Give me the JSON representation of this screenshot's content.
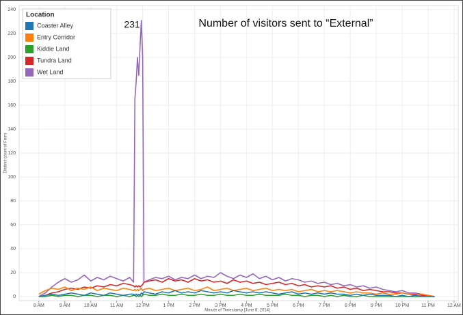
{
  "chart_data": {
    "type": "line",
    "title": "Number of visitors sent to “External”",
    "annotation": "231",
    "xlabel": "Minute of Timestamp [June 8, 2014]",
    "ylabel": "Distinct count of From",
    "legend_title": "Location",
    "legend": "top-left",
    "grid": true,
    "x": [
      8.0,
      8.25,
      8.5,
      8.75,
      9.0,
      9.25,
      9.5,
      9.75,
      10.0,
      10.25,
      10.5,
      10.75,
      11.0,
      11.25,
      11.5,
      11.65,
      11.7,
      11.75,
      11.8,
      11.85,
      11.9,
      11.95,
      12.0,
      12.05,
      12.25,
      12.5,
      12.75,
      13.0,
      13.25,
      13.5,
      13.75,
      14.0,
      14.25,
      14.5,
      14.75,
      15.0,
      15.25,
      15.5,
      15.75,
      16.0,
      16.25,
      16.5,
      16.75,
      17.0,
      17.25,
      17.5,
      17.75,
      18.0,
      18.25,
      18.5,
      18.75,
      19.0,
      19.25,
      19.5,
      19.75,
      20.0,
      20.25,
      20.5,
      20.75,
      21.0,
      21.25,
      21.5,
      21.75,
      22.0,
      22.25,
      22.5,
      22.75,
      23.0,
      23.25
    ],
    "xlim": [
      7.24,
      24.16
    ],
    "xticks": [
      {
        "value": 8,
        "label": "8 AM"
      },
      {
        "value": 9,
        "label": "9 AM"
      },
      {
        "value": 10,
        "label": "10 AM"
      },
      {
        "value": 11,
        "label": "11 AM"
      },
      {
        "value": 12,
        "label": "12 PM"
      },
      {
        "value": 13,
        "label": "1 PM"
      },
      {
        "value": 14,
        "label": "2 PM"
      },
      {
        "value": 15,
        "label": "3 PM"
      },
      {
        "value": 16,
        "label": "4 PM"
      },
      {
        "value": 17,
        "label": "5 PM"
      },
      {
        "value": 18,
        "label": "6 PM"
      },
      {
        "value": 19,
        "label": "7 PM"
      },
      {
        "value": 20,
        "label": "8 PM"
      },
      {
        "value": 21,
        "label": "9 PM"
      },
      {
        "value": 22,
        "label": "10 PM"
      },
      {
        "value": 23,
        "label": "11 PM"
      },
      {
        "value": 24,
        "label": "12 AM"
      }
    ],
    "ylim": [
      0,
      240
    ],
    "yticks": [
      0,
      20,
      40,
      60,
      80,
      100,
      120,
      140,
      160,
      180,
      200,
      220,
      240
    ],
    "series": [
      {
        "name": "Coaster Alley",
        "color": "#1f77b4",
        "values": [
          0,
          1,
          2,
          1,
          2,
          3,
          2,
          1,
          3,
          2,
          1,
          3,
          2,
          1,
          2,
          2,
          1,
          2,
          1,
          2,
          1,
          3,
          2,
          4,
          3,
          2,
          4,
          3,
          5,
          3,
          4,
          3,
          5,
          4,
          3,
          4,
          3,
          5,
          4,
          3,
          4,
          3,
          4,
          3,
          2,
          3,
          4,
          2,
          3,
          2,
          3,
          2,
          3,
          2,
          2,
          1,
          2,
          1,
          2,
          1,
          1,
          1,
          0,
          1,
          0,
          1,
          0,
          0,
          0
        ]
      },
      {
        "name": "Entry Corridor",
        "color": "#ff7f0e",
        "values": [
          2,
          5,
          7,
          6,
          8,
          5,
          7,
          6,
          8,
          5,
          7,
          6,
          5,
          7,
          6,
          5,
          6,
          5,
          6,
          5,
          6,
          7,
          5,
          6,
          7,
          5,
          6,
          7,
          5,
          6,
          7,
          5,
          6,
          8,
          5,
          6,
          7,
          5,
          6,
          7,
          5,
          6,
          7,
          5,
          6,
          5,
          6,
          4,
          5,
          6,
          4,
          5,
          4,
          5,
          4,
          3,
          4,
          3,
          3,
          2,
          3,
          2,
          2,
          3,
          2,
          1,
          2,
          1,
          0
        ]
      },
      {
        "name": "Kiddie Land",
        "color": "#2ca02c",
        "values": [
          0,
          0,
          1,
          0,
          1,
          1,
          0,
          1,
          1,
          0,
          1,
          1,
          0,
          1,
          0,
          1,
          1,
          0,
          1,
          0,
          1,
          0,
          1,
          2,
          1,
          1,
          2,
          1,
          1,
          2,
          1,
          1,
          2,
          1,
          1,
          2,
          1,
          1,
          2,
          1,
          1,
          2,
          1,
          1,
          1,
          2,
          1,
          1,
          0,
          1,
          1,
          0,
          1,
          0,
          1,
          0,
          0,
          1,
          0,
          0,
          0,
          0,
          0,
          0,
          0,
          0,
          0,
          0,
          0
        ]
      },
      {
        "name": "Tundra Land",
        "color": "#d62728",
        "values": [
          0,
          1,
          3,
          4,
          6,
          7,
          6,
          8,
          7,
          9,
          8,
          10,
          9,
          11,
          10,
          9,
          8,
          9,
          8,
          9,
          8,
          9,
          10,
          12,
          13,
          14,
          12,
          15,
          13,
          14,
          12,
          15,
          13,
          14,
          12,
          13,
          11,
          14,
          12,
          13,
          11,
          12,
          10,
          11,
          12,
          10,
          11,
          9,
          10,
          8,
          9,
          8,
          9,
          7,
          8,
          6,
          7,
          5,
          6,
          5,
          4,
          4,
          3,
          3,
          2,
          2,
          1,
          1,
          0
        ]
      },
      {
        "name": "Wet Land",
        "color": "#9467bd",
        "values": [
          0,
          3,
          8,
          12,
          15,
          12,
          14,
          18,
          13,
          16,
          14,
          17,
          15,
          13,
          16,
          12,
          165,
          180,
          200,
          185,
          210,
          231,
          200,
          12,
          14,
          16,
          15,
          17,
          14,
          16,
          15,
          18,
          15,
          17,
          16,
          20,
          17,
          15,
          18,
          16,
          19,
          15,
          17,
          14,
          16,
          13,
          15,
          14,
          12,
          13,
          11,
          12,
          10,
          11,
          9,
          10,
          8,
          9,
          7,
          8,
          6,
          5,
          4,
          5,
          3,
          3,
          2,
          1,
          0
        ]
      }
    ]
  }
}
